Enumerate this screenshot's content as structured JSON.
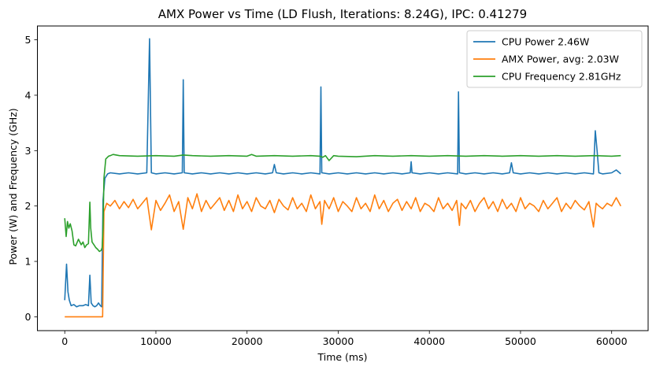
{
  "chart_data": {
    "type": "line",
    "title": "AMX Power vs Time (LD Flush, Iterations: 8.24G), IPC: 0.41279",
    "xlabel": "Time (ms)",
    "ylabel": "Power (W) and Frequency (GHz)",
    "xlim": [
      -3000,
      64000
    ],
    "ylim": [
      -0.25,
      5.25
    ],
    "xticks": [
      0,
      10000,
      20000,
      30000,
      40000,
      50000,
      60000
    ],
    "xtick_labels": [
      "0",
      "10000",
      "20000",
      "30000",
      "40000",
      "50000",
      "60000"
    ],
    "yticks": [
      0,
      1,
      2,
      3,
      4,
      5
    ],
    "ytick_labels": [
      "0",
      "1",
      "2",
      "3",
      "4",
      "5"
    ],
    "grid": false,
    "legend_position": "top-right",
    "series": [
      {
        "name": "CPU Power 2.46W",
        "color": "#1f77b4",
        "x": [
          0,
          200,
          350,
          500,
          700,
          1000,
          1300,
          1600,
          2000,
          2300,
          2600,
          2750,
          2900,
          3100,
          3300,
          3500,
          3700,
          3900,
          4050,
          4200,
          4400,
          4700,
          5000,
          6000,
          7000,
          8000,
          9000,
          9300,
          9500,
          10000,
          11000,
          12000,
          12900,
          13000,
          13100,
          14000,
          15000,
          16000,
          17000,
          18000,
          19000,
          20000,
          21000,
          22000,
          22800,
          23000,
          23200,
          24000,
          25000,
          26000,
          27000,
          28000,
          28100,
          28200,
          29000,
          30000,
          31000,
          32000,
          33000,
          34000,
          35000,
          36000,
          37000,
          37900,
          38000,
          38100,
          39000,
          40000,
          41000,
          42000,
          43100,
          43200,
          43300,
          44000,
          45000,
          46000,
          47000,
          48000,
          48800,
          49000,
          49200,
          50000,
          51000,
          52000,
          53000,
          54000,
          55000,
          56000,
          57000,
          58000,
          58200,
          58400,
          58600,
          59000,
          60000,
          60500,
          61000
        ],
        "y": [
          0.3,
          0.95,
          0.45,
          0.3,
          0.2,
          0.22,
          0.18,
          0.2,
          0.2,
          0.22,
          0.2,
          0.75,
          0.25,
          0.2,
          0.18,
          0.2,
          0.25,
          0.2,
          0.18,
          2.1,
          2.5,
          2.58,
          2.6,
          2.58,
          2.6,
          2.58,
          2.6,
          5.02,
          2.6,
          2.58,
          2.6,
          2.58,
          2.6,
          4.28,
          2.6,
          2.58,
          2.6,
          2.58,
          2.6,
          2.58,
          2.6,
          2.58,
          2.6,
          2.58,
          2.6,
          2.75,
          2.6,
          2.58,
          2.6,
          2.58,
          2.6,
          2.58,
          4.15,
          2.6,
          2.58,
          2.6,
          2.58,
          2.6,
          2.58,
          2.6,
          2.58,
          2.6,
          2.58,
          2.6,
          2.8,
          2.6,
          2.58,
          2.6,
          2.58,
          2.6,
          2.58,
          4.06,
          2.6,
          2.58,
          2.6,
          2.58,
          2.6,
          2.58,
          2.6,
          2.78,
          2.6,
          2.58,
          2.6,
          2.58,
          2.6,
          2.58,
          2.6,
          2.58,
          2.6,
          2.58,
          3.36,
          3.0,
          2.6,
          2.58,
          2.6,
          2.65,
          2.58
        ]
      },
      {
        "name": "AMX Power, avg: 2.03W",
        "color": "#ff7f0e",
        "x": [
          0,
          1000,
          2000,
          3000,
          4000,
          4150,
          4300,
          4600,
          5000,
          5500,
          6000,
          6500,
          7000,
          7500,
          8000,
          8500,
          9000,
          9500,
          10000,
          10500,
          11000,
          11500,
          12000,
          12500,
          13000,
          13500,
          14000,
          14500,
          15000,
          15500,
          16000,
          16500,
          17000,
          17500,
          18000,
          18500,
          19000,
          19500,
          20000,
          20500,
          21000,
          21500,
          22000,
          22500,
          23000,
          23500,
          24000,
          24500,
          25000,
          25500,
          26000,
          26500,
          27000,
          27500,
          28000,
          28200,
          28500,
          29000,
          29500,
          30000,
          30500,
          31000,
          31500,
          32000,
          32500,
          33000,
          33500,
          34000,
          34500,
          35000,
          35500,
          36000,
          36500,
          37000,
          37500,
          38000,
          38500,
          39000,
          39500,
          40000,
          40500,
          41000,
          41500,
          42000,
          42500,
          43000,
          43300,
          43500,
          44000,
          44500,
          45000,
          45500,
          46000,
          46500,
          47000,
          47500,
          48000,
          48500,
          49000,
          49500,
          50000,
          50500,
          51000,
          51500,
          52000,
          52500,
          53000,
          53500,
          54000,
          54500,
          55000,
          55500,
          56000,
          56500,
          57000,
          57500,
          58000,
          58300,
          58600,
          59000,
          59500,
          60000,
          60500,
          61000
        ],
        "y": [
          0.0,
          0.0,
          0.0,
          0.0,
          0.0,
          0.0,
          1.9,
          2.05,
          2.0,
          2.1,
          1.95,
          2.08,
          1.97,
          2.12,
          1.95,
          2.05,
          2.15,
          1.57,
          2.1,
          1.92,
          2.05,
          2.2,
          1.9,
          2.08,
          1.58,
          2.15,
          1.95,
          2.22,
          1.9,
          2.1,
          1.95,
          2.05,
          2.15,
          1.92,
          2.1,
          1.9,
          2.2,
          1.95,
          2.08,
          1.9,
          2.15,
          2.0,
          1.95,
          2.1,
          1.88,
          2.12,
          2.0,
          1.93,
          2.15,
          1.95,
          2.05,
          1.9,
          2.2,
          1.95,
          2.08,
          1.67,
          2.1,
          1.95,
          2.15,
          1.9,
          2.08,
          2.0,
          1.9,
          2.15,
          1.95,
          2.05,
          1.9,
          2.2,
          1.95,
          2.1,
          1.9,
          2.05,
          2.12,
          1.92,
          2.08,
          1.95,
          2.15,
          1.9,
          2.05,
          2.0,
          1.9,
          2.15,
          1.95,
          2.05,
          1.92,
          2.1,
          1.65,
          2.05,
          1.95,
          2.1,
          1.9,
          2.05,
          2.15,
          1.95,
          2.08,
          1.9,
          2.12,
          1.95,
          2.05,
          1.9,
          2.15,
          1.95,
          2.05,
          2.0,
          1.9,
          2.1,
          1.95,
          2.05,
          2.15,
          1.9,
          2.05,
          1.95,
          2.1,
          2.0,
          1.93,
          2.08,
          1.62,
          2.05,
          2.0,
          1.95,
          2.05,
          2.0,
          2.15,
          2.0
        ]
      },
      {
        "name": "CPU Frequency 2.81GHz",
        "color": "#2ca02c",
        "x": [
          0,
          150,
          300,
          450,
          600,
          800,
          1000,
          1200,
          1500,
          1800,
          2000,
          2200,
          2400,
          2600,
          2750,
          2850,
          3000,
          3200,
          3400,
          3600,
          3800,
          4000,
          4100,
          4200,
          4300,
          4500,
          4800,
          5000,
          5300,
          6000,
          8000,
          10000,
          12000,
          13000,
          14000,
          16000,
          18000,
          20000,
          20500,
          21000,
          23000,
          25000,
          27000,
          28000,
          28300,
          28600,
          29000,
          29500,
          30000,
          32000,
          34000,
          36000,
          38000,
          40000,
          42000,
          44000,
          46000,
          48000,
          50000,
          52000,
          54000,
          56000,
          58000,
          60000,
          61000
        ],
        "y": [
          1.78,
          1.45,
          1.72,
          1.6,
          1.68,
          1.55,
          1.3,
          1.28,
          1.4,
          1.3,
          1.35,
          1.25,
          1.3,
          1.32,
          2.07,
          1.6,
          1.35,
          1.3,
          1.25,
          1.22,
          1.18,
          1.2,
          1.25,
          1.6,
          2.5,
          2.85,
          2.9,
          2.91,
          2.93,
          2.91,
          2.9,
          2.91,
          2.9,
          2.92,
          2.91,
          2.9,
          2.91,
          2.9,
          2.93,
          2.9,
          2.91,
          2.9,
          2.91,
          2.9,
          2.88,
          2.91,
          2.82,
          2.91,
          2.9,
          2.89,
          2.91,
          2.9,
          2.91,
          2.9,
          2.91,
          2.9,
          2.91,
          2.9,
          2.91,
          2.9,
          2.91,
          2.9,
          2.91,
          2.9,
          2.91
        ]
      }
    ]
  }
}
